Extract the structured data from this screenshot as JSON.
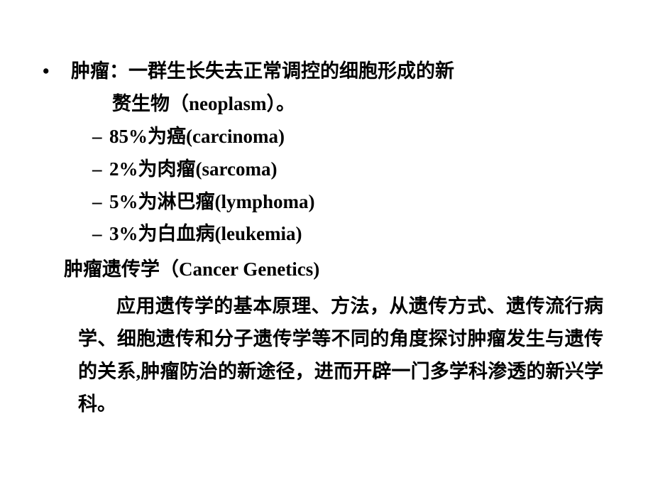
{
  "colors": {
    "background": "#ffffff",
    "text": "#000000"
  },
  "typography": {
    "font_family": "SimSun / Songti serif",
    "base_fontsize_pt": 20,
    "weight": "bold",
    "line_height": 1.7
  },
  "bullet": {
    "marker": "•",
    "line1": "肿瘤：一群生长失去正常调控的细胞形成的新",
    "line2": "赘生物（neoplasm）。"
  },
  "sub_marker": "–",
  "sub_items": [
    "85%为癌(carcinoma)",
    "2%为肉瘤(sarcoma)",
    "5%为淋巴瘤(lymphoma)",
    "3%为白血病(leukemia)"
  ],
  "section_title": "肿瘤遗传学（Cancer Genetics)",
  "paragraph": "应用遗传学的基本原理、方法，从遗传方式、遗传流行病学、细胞遗传和分子遗传学等不同的角度探讨肿瘤发生与遗传的关系,肿瘤防治的新途径，进而开辟一门多学科渗透的新兴学科。"
}
